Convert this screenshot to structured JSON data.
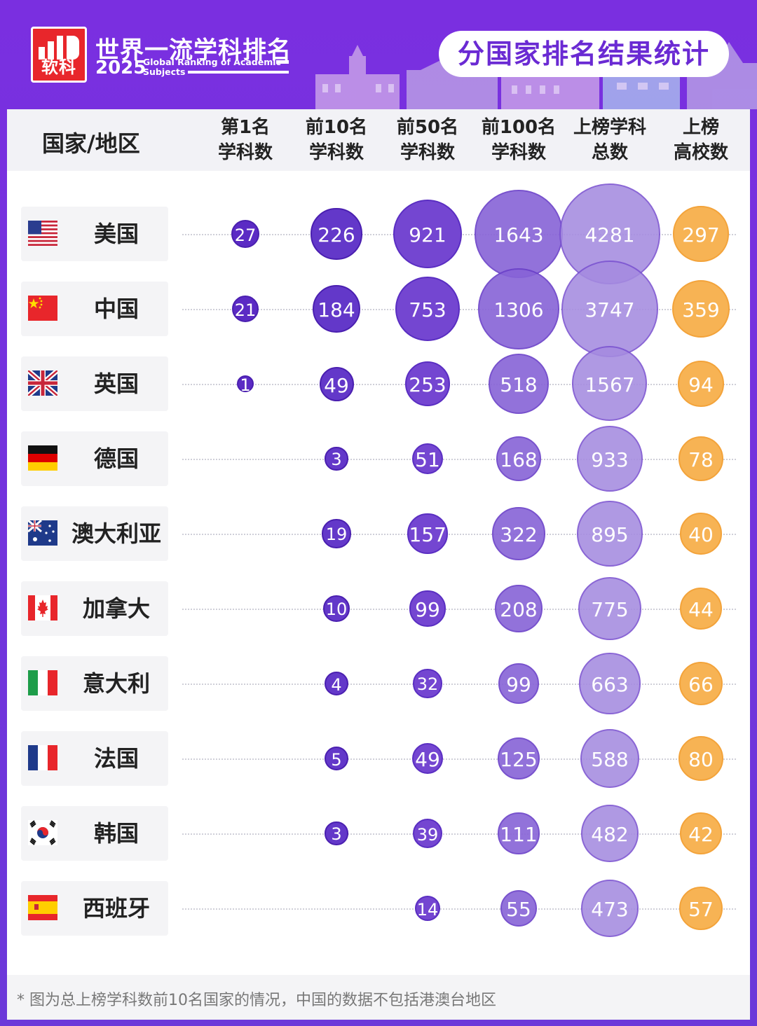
{
  "brand": {
    "logo_text": "软科",
    "title": "世界一流学科排名",
    "year": "2025",
    "subtitle_en_1": "Global Ranking of Academic",
    "subtitle_en_2": "Subjects"
  },
  "pill_title": "分国家排名结果统计",
  "table_header": {
    "country": "国家/地区",
    "columns": [
      {
        "line1": "第1名",
        "line2": "学科数"
      },
      {
        "line1": "前10名",
        "line2": "学科数"
      },
      {
        "line1": "前50名",
        "line2": "学科数"
      },
      {
        "line1": "前100名",
        "line2": "学科数"
      },
      {
        "line1": "上榜学科",
        "line2": "总数"
      },
      {
        "line1": "上榜",
        "line2": "高校数"
      }
    ]
  },
  "chart_data": {
    "type": "table",
    "columns": [
      "第1名学科数",
      "前10名学科数",
      "前50名学科数",
      "前100名学科数",
      "上榜学科总数",
      "上榜高校数"
    ],
    "rows": [
      {
        "country": "美国",
        "flag": "us-flag-icon",
        "values": [
          27,
          226,
          921,
          1643,
          4281,
          297
        ]
      },
      {
        "country": "中国",
        "flag": "china-flag-icon",
        "values": [
          21,
          184,
          753,
          1306,
          3747,
          359
        ]
      },
      {
        "country": "英国",
        "flag": "uk-flag-icon",
        "values": [
          1,
          49,
          253,
          518,
          1567,
          94
        ]
      },
      {
        "country": "德国",
        "flag": "germany-flag-icon",
        "values": [
          null,
          3,
          51,
          168,
          933,
          78
        ]
      },
      {
        "country": "澳大利亚",
        "flag": "australia-flag-icon",
        "values": [
          null,
          19,
          157,
          322,
          895,
          40
        ]
      },
      {
        "country": "加拿大",
        "flag": "canada-flag-icon",
        "values": [
          null,
          10,
          99,
          208,
          775,
          44
        ]
      },
      {
        "country": "意大利",
        "flag": "italy-flag-icon",
        "values": [
          null,
          4,
          32,
          99,
          663,
          66
        ]
      },
      {
        "country": "法国",
        "flag": "france-flag-icon",
        "values": [
          null,
          5,
          49,
          125,
          588,
          80
        ]
      },
      {
        "country": "韩国",
        "flag": "korea-flag-icon",
        "values": [
          null,
          3,
          39,
          111,
          482,
          42
        ]
      },
      {
        "country": "西班牙",
        "flag": "spain-flag-icon",
        "values": [
          null,
          null,
          14,
          55,
          473,
          57
        ]
      }
    ]
  },
  "colors": {
    "header_bg": "#7a2fe0",
    "bubble_dark": "#5b2bc4",
    "bubble_light": "#a58be0",
    "bubble_orange": "#f7b354",
    "pill_text": "#6a2ad3"
  },
  "footnote": "* 图为总上榜学科数前10名国家的情况，中国的数据不包括港澳台地区"
}
